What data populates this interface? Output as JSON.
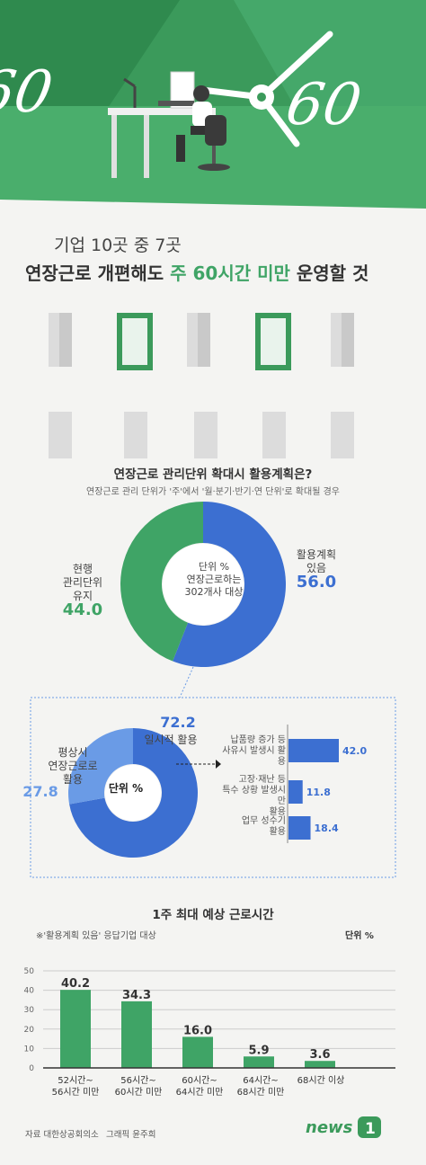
{
  "hero": {
    "clock_left": "60",
    "clock_right": "60"
  },
  "headline": {
    "line1": "기업 10곳 중 7곳",
    "line2_pre": "연장근로 개편해도 ",
    "line2_highlight": "주 60시간 미만",
    "line2_post": " 운영할 것"
  },
  "donut_section": {
    "title": "연장근로 관리단위 확대시 활용계획은?",
    "subtitle": "연장근로 관리 단위가 '주'에서 '월·분기·반기·연 단위'로 확대될 경우",
    "center_line1": "단위 %",
    "center_line2": "연장근로하는",
    "center_line3": "302개사 대상",
    "left_label_1": "현행",
    "left_label_2": "관리단위",
    "left_label_3": "유지",
    "left_value": "44.0",
    "right_label_1": "활용계획",
    "right_label_2": "있음",
    "right_value": "56.0"
  },
  "detail_section": {
    "center": "단위 %",
    "left_label_1": "평상시",
    "left_label_2": "연장근로로",
    "left_label_3": "활용",
    "left_value": "27.8",
    "top_value": "72.2",
    "top_label": "일시적 활용",
    "bars": [
      {
        "label_1": "납품량 증가 등",
        "label_2": "사유시 발생시 활용",
        "label_3": "",
        "value": "42.0"
      },
      {
        "label_1": "고장·재난 등",
        "label_2": "특수 상황 발생시만",
        "label_3": "활용",
        "value": "11.8"
      },
      {
        "label_1": "업무 성수기",
        "label_2": "활용",
        "label_3": "",
        "value": "18.4"
      }
    ]
  },
  "bar_section": {
    "title": "1주 최대 예상 근로시간",
    "note": "※'활용계획 있음' 응답기업 대상",
    "unit": "단위 %",
    "y_ticks": [
      "50",
      "40",
      "30",
      "20",
      "10",
      "0"
    ],
    "bar_labels": [
      {
        "l1": "52시간~",
        "l2": "56시간 미만"
      },
      {
        "l1": "56시간~",
        "l2": "60시간 미만"
      },
      {
        "l1": "60시간~",
        "l2": "64시간 미만"
      },
      {
        "l1": "64시간~",
        "l2": "68시간 미만"
      },
      {
        "l1": "68시간 이상",
        "l2": ""
      }
    ]
  },
  "chart_data": [
    {
      "type": "pie",
      "title": "연장근로 관리단위 확대시 활용계획은?",
      "categories": [
        "활용계획 있음",
        "현행 관리단위 유지"
      ],
      "values": [
        56.0,
        44.0
      ],
      "colors": [
        "#3c6fd1",
        "#3fa466"
      ]
    },
    {
      "type": "pie",
      "categories": [
        "일시적 활용",
        "평상시 연장근로로 활용"
      ],
      "values": [
        72.2,
        27.8
      ],
      "colors": [
        "#3c6fd1",
        "#6a9be6"
      ]
    },
    {
      "type": "bar",
      "categories": [
        "납품량 증가 등 사유시 발생시 활용",
        "고장·재난 등 특수 상황 발생시만 활용",
        "업무 성수기 활용"
      ],
      "values": [
        42.0,
        11.8,
        18.4
      ],
      "xlim": [
        0,
        42
      ]
    },
    {
      "type": "bar",
      "title": "1주 최대 예상 근로시간",
      "categories": [
        "52시간~56시간 미만",
        "56시간~60시간 미만",
        "60시간~64시간 미만",
        "64시간~68시간 미만",
        "68시간 이상"
      ],
      "values": [
        40.2,
        34.3,
        16.0,
        5.9,
        3.6
      ],
      "ylim": [
        0,
        50
      ],
      "color": "#3fa466"
    }
  ],
  "footer": {
    "source": "자료 대한상공회의소",
    "credit": "그래픽 윤주희",
    "logo": "news1"
  },
  "colors": {
    "green": "#3fa466",
    "blue": "#3c6fd1",
    "light_blue": "#6a9be6"
  }
}
